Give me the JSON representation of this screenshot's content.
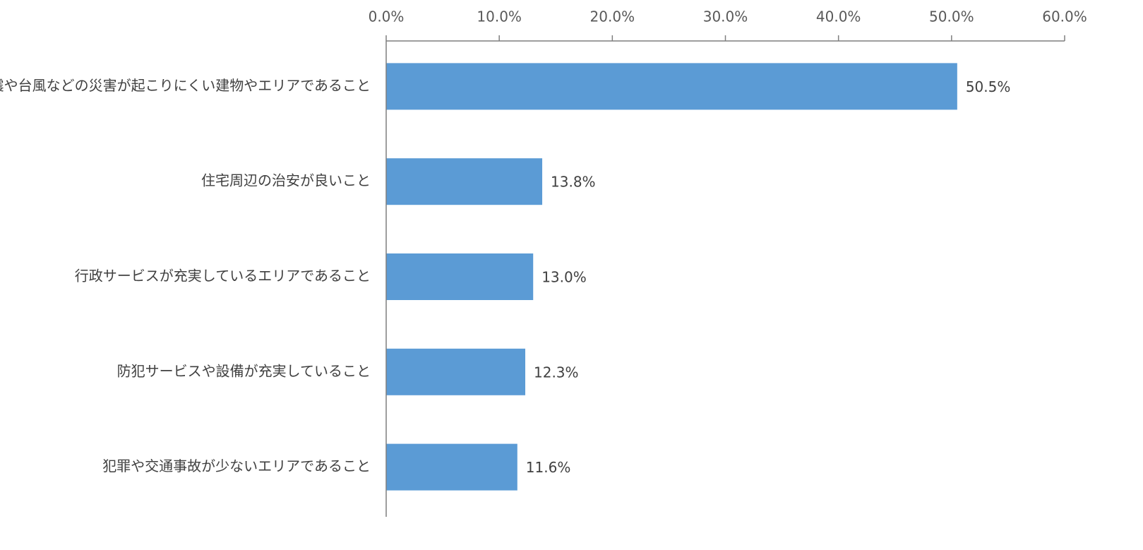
{
  "chart_data": {
    "type": "bar",
    "orientation": "horizontal",
    "categories": [
      "地震や台風などの災害が起こりにくい建物やエリアであること",
      "住宅周辺の治安が良いこと",
      "行政サービスが充実しているエリアであること",
      "防犯サービスや設備が充実していること",
      "犯罪や交通事故が少ないエリアであること"
    ],
    "values": [
      50.5,
      13.8,
      13.0,
      12.3,
      11.6
    ],
    "value_labels": [
      "50.5%",
      "13.8%",
      "13.0%",
      "12.3%",
      "11.6%"
    ],
    "color": "#5b9bd5",
    "xlim": [
      0,
      60
    ],
    "xticks": [
      {
        "value": 0,
        "label": "0.0%"
      },
      {
        "value": 10,
        "label": "10.0%"
      },
      {
        "value": 20,
        "label": "20.0%"
      },
      {
        "value": 30,
        "label": "30.0%"
      },
      {
        "value": 40,
        "label": "40.0%"
      },
      {
        "value": 50,
        "label": "50.0%"
      },
      {
        "value": 60,
        "label": "60.0%"
      }
    ],
    "grid": false
  }
}
